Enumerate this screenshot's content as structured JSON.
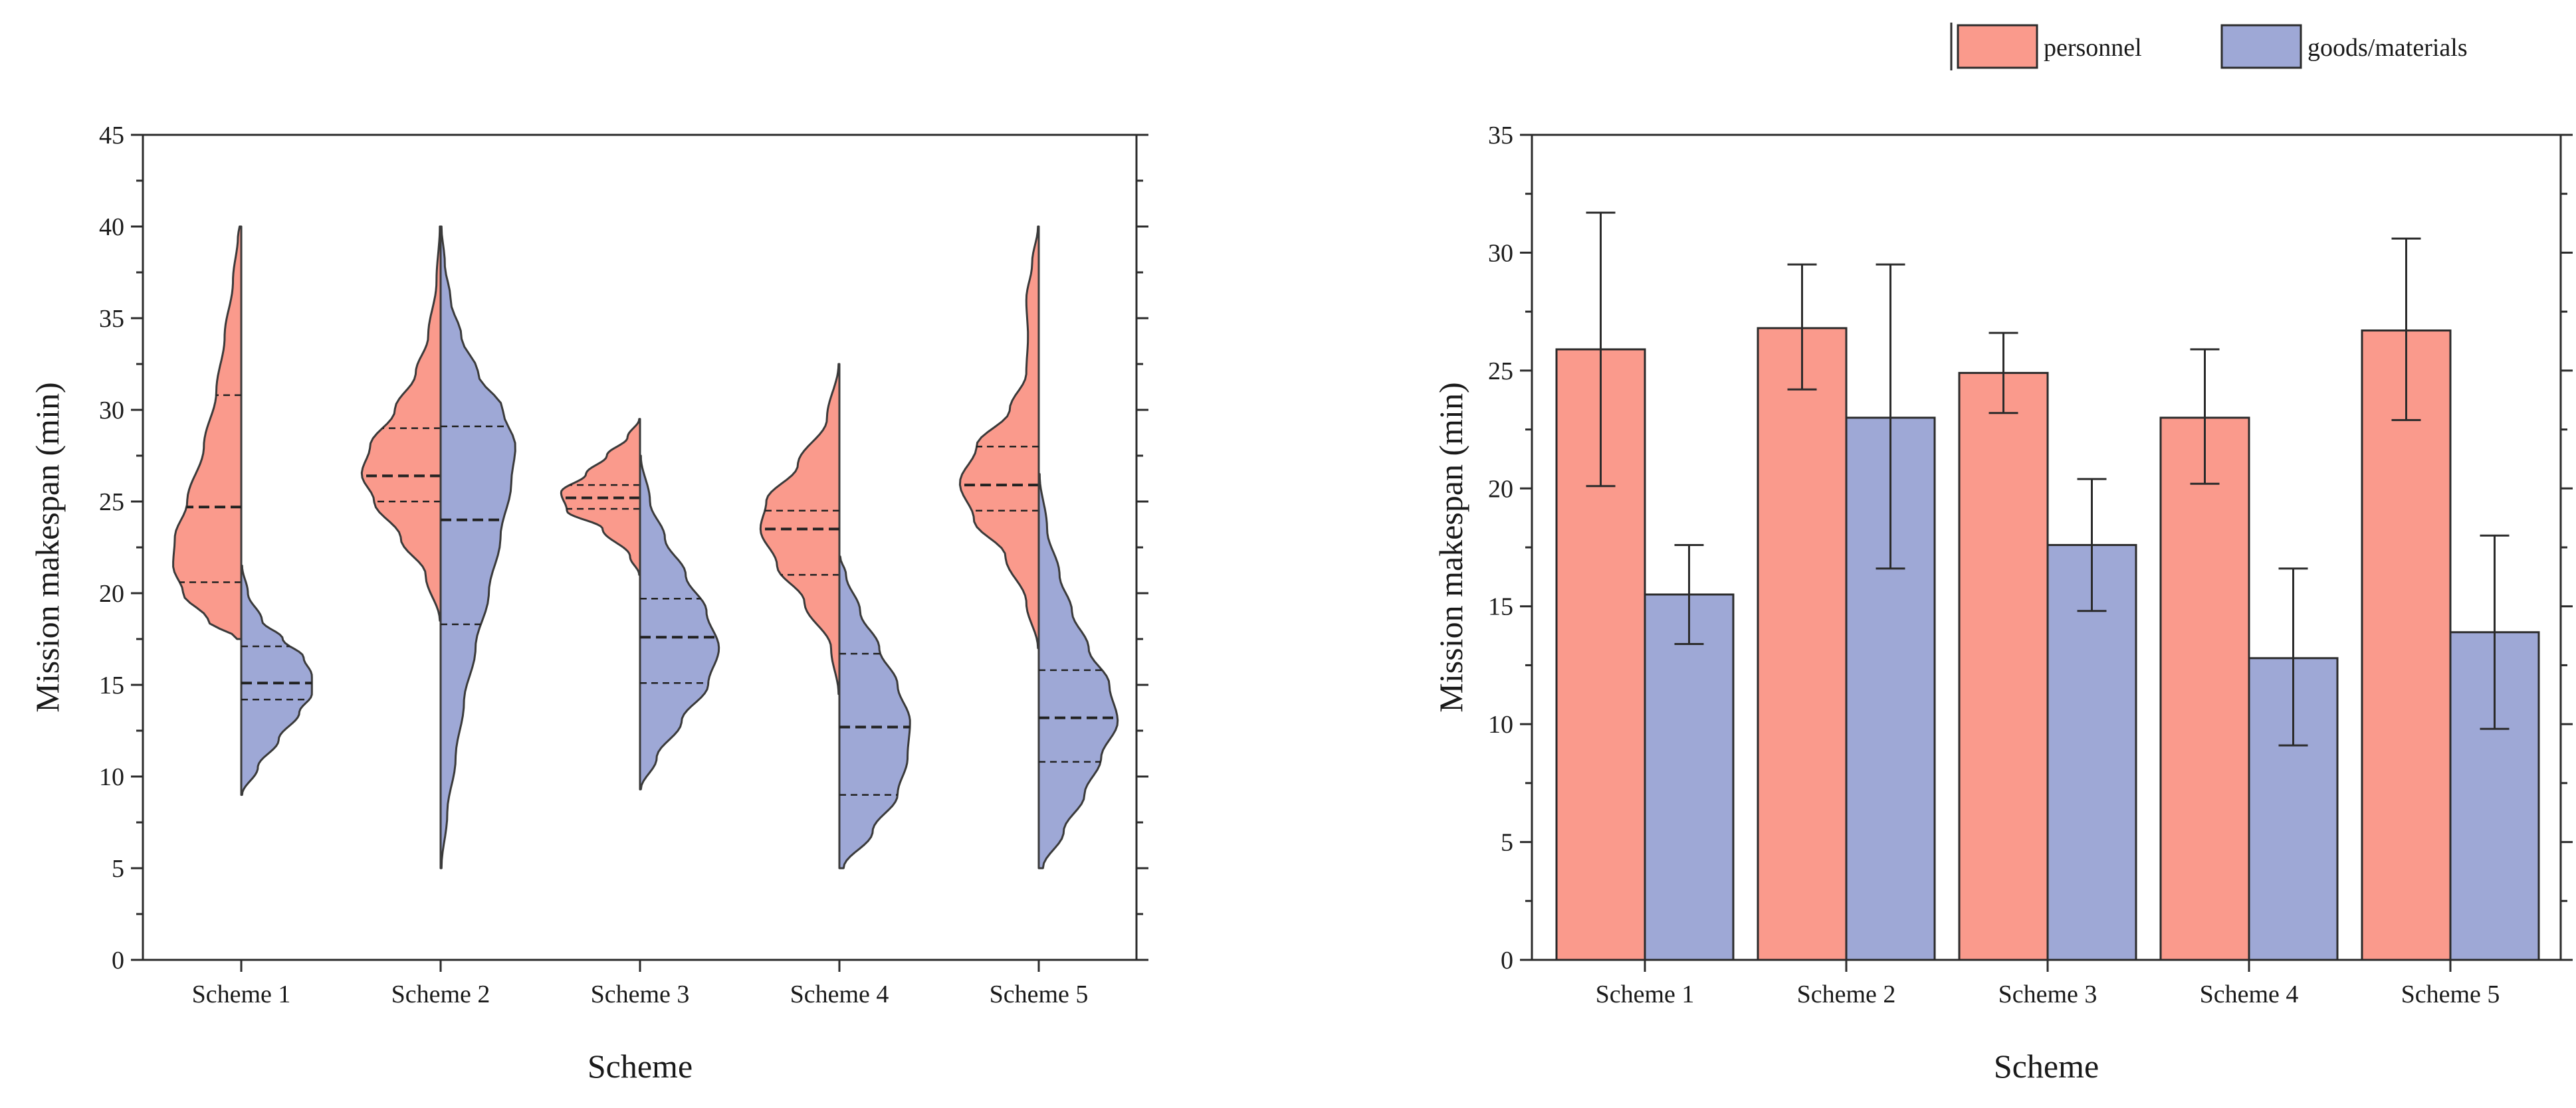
{
  "legend": {
    "entries": [
      {
        "label": "personnel",
        "color": "#fa9a8c"
      },
      {
        "label": "goods/materials",
        "color": "#9ea8d6"
      }
    ]
  },
  "chart_data": [
    {
      "type": "violin",
      "title": "",
      "xlabel": "Scheme",
      "ylabel": "Mission makespan (min)",
      "ylim": [
        0,
        45
      ],
      "yticks": [
        0,
        5,
        10,
        15,
        20,
        25,
        30,
        35,
        40,
        45
      ],
      "categories": [
        "Scheme 1",
        "Scheme 2",
        "Scheme 3",
        "Scheme 4",
        "Scheme 5"
      ],
      "series": [
        {
          "name": "personnel",
          "side": "left",
          "color": "#fa9a8c",
          "ranges": [
            [
              17.5,
              40
            ],
            [
              18.5,
              40
            ],
            [
              21,
              29.5
            ],
            [
              14.5,
              32.5
            ],
            [
              17,
              40
            ]
          ],
          "quartiles": [
            [
              20.6,
              24.7,
              30.8
            ],
            [
              25.0,
              26.4,
              29.0
            ],
            [
              24.6,
              25.2,
              25.9
            ],
            [
              21.0,
              23.5,
              24.5
            ],
            [
              24.5,
              25.9,
              28.0
            ]
          ],
          "profiles": [
            [
              [
                17.5,
                0.05
              ],
              [
                18.5,
                0.4
              ],
              [
                20,
                0.7
              ],
              [
                21.5,
                0.82
              ],
              [
                23,
                0.8
              ],
              [
                25,
                0.65
              ],
              [
                28,
                0.45
              ],
              [
                31,
                0.3
              ],
              [
                34,
                0.2
              ],
              [
                37,
                0.1
              ],
              [
                39.5,
                0.04
              ],
              [
                40,
                0.02
              ]
            ],
            [
              [
                18.5,
                0.01
              ],
              [
                21,
                0.18
              ],
              [
                23,
                0.48
              ],
              [
                25,
                0.8
              ],
              [
                26.5,
                0.95
              ],
              [
                28,
                0.85
              ],
              [
                30,
                0.55
              ],
              [
                32,
                0.3
              ],
              [
                34,
                0.15
              ],
              [
                37,
                0.05
              ],
              [
                40,
                0.01
              ]
            ],
            [
              [
                21,
                0.01
              ],
              [
                22,
                0.12
              ],
              [
                23.5,
                0.45
              ],
              [
                24.5,
                0.88
              ],
              [
                25.5,
                0.95
              ],
              [
                26.5,
                0.65
              ],
              [
                27.5,
                0.4
              ],
              [
                28.5,
                0.15
              ],
              [
                29.5,
                0.01
              ]
            ],
            [
              [
                14.5,
                0.01
              ],
              [
                17,
                0.1
              ],
              [
                19.5,
                0.42
              ],
              [
                21.5,
                0.75
              ],
              [
                23.5,
                0.95
              ],
              [
                25,
                0.88
              ],
              [
                27,
                0.5
              ],
              [
                29.5,
                0.15
              ],
              [
                32.5,
                0.01
              ]
            ],
            [
              [
                17,
                0.01
              ],
              [
                19.5,
                0.15
              ],
              [
                22,
                0.4
              ],
              [
                24,
                0.78
              ],
              [
                26,
                0.95
              ],
              [
                28,
                0.75
              ],
              [
                30,
                0.35
              ],
              [
                32,
                0.15
              ],
              [
                34,
                0.13
              ],
              [
                36,
                0.15
              ],
              [
                38,
                0.08
              ],
              [
                40,
                0.01
              ]
            ]
          ]
        },
        {
          "name": "goods/materials",
          "side": "right",
          "color": "#9ea8d6",
          "ranges": [
            [
              9,
              21.5
            ],
            [
              5,
              40
            ],
            [
              9.3,
              27.5
            ],
            [
              5,
              22
            ],
            [
              5,
              26.5
            ]
          ],
          "quartiles": [
            [
              14.2,
              15.1,
              17.1
            ],
            [
              18.3,
              24.0,
              29.1
            ],
            [
              15.1,
              17.6,
              19.7
            ],
            [
              9.0,
              12.7,
              16.7
            ],
            [
              10.8,
              13.2,
              15.8
            ]
          ],
          "profiles": [
            [
              [
                9,
                0.01
              ],
              [
                10.5,
                0.2
              ],
              [
                12,
                0.45
              ],
              [
                13.5,
                0.7
              ],
              [
                14.5,
                0.85
              ],
              [
                15.5,
                0.85
              ],
              [
                16.5,
                0.75
              ],
              [
                17.5,
                0.5
              ],
              [
                18.5,
                0.25
              ],
              [
                20,
                0.08
              ],
              [
                21.5,
                0.01
              ]
            ],
            [
              [
                5,
                0.01
              ],
              [
                8,
                0.08
              ],
              [
                11,
                0.18
              ],
              [
                14,
                0.28
              ],
              [
                17,
                0.42
              ],
              [
                20,
                0.58
              ],
              [
                23,
                0.72
              ],
              [
                26,
                0.85
              ],
              [
                28,
                0.9
              ],
              [
                30,
                0.75
              ],
              [
                32,
                0.45
              ],
              [
                34,
                0.25
              ],
              [
                36,
                0.12
              ],
              [
                38,
                0.05
              ],
              [
                40,
                0.01
              ]
            ],
            [
              [
                9.3,
                0.01
              ],
              [
                11,
                0.2
              ],
              [
                13,
                0.5
              ],
              [
                15,
                0.82
              ],
              [
                17,
                0.95
              ],
              [
                19,
                0.8
              ],
              [
                21,
                0.55
              ],
              [
                23,
                0.3
              ],
              [
                25,
                0.12
              ],
              [
                27.5,
                0.01
              ]
            ],
            [
              [
                5,
                0.05
              ],
              [
                7,
                0.4
              ],
              [
                9,
                0.7
              ],
              [
                11,
                0.82
              ],
              [
                13,
                0.85
              ],
              [
                15,
                0.7
              ],
              [
                17,
                0.48
              ],
              [
                19,
                0.25
              ],
              [
                21,
                0.08
              ],
              [
                22,
                0.01
              ]
            ],
            [
              [
                5,
                0.05
              ],
              [
                7,
                0.3
              ],
              [
                9,
                0.55
              ],
              [
                11,
                0.75
              ],
              [
                13,
                0.95
              ],
              [
                15,
                0.85
              ],
              [
                17,
                0.6
              ],
              [
                19,
                0.4
              ],
              [
                21,
                0.25
              ],
              [
                23.5,
                0.1
              ],
              [
                26.5,
                0.01
              ]
            ]
          ]
        }
      ]
    },
    {
      "type": "bar",
      "title": "",
      "xlabel": "Scheme",
      "ylabel": "Mission makespan (min)",
      "ylim": [
        0,
        35
      ],
      "yticks": [
        0,
        5,
        10,
        15,
        20,
        25,
        30,
        35
      ],
      "categories": [
        "Scheme 1",
        "Scheme 2",
        "Scheme 3",
        "Scheme 4",
        "Scheme 5"
      ],
      "series": [
        {
          "name": "personnel",
          "color": "#fa9a8c",
          "values": [
            25.9,
            26.8,
            24.9,
            23.0,
            26.7
          ],
          "err_low": [
            20.1,
            24.2,
            23.2,
            20.2,
            22.9
          ],
          "err_high": [
            31.7,
            29.5,
            26.6,
            25.9,
            30.6
          ]
        },
        {
          "name": "goods/materials",
          "color": "#9ea8d6",
          "values": [
            15.5,
            23.0,
            17.6,
            12.8,
            13.9
          ],
          "err_low": [
            13.4,
            16.6,
            14.8,
            9.1,
            9.8
          ],
          "err_high": [
            17.6,
            29.5,
            20.4,
            16.6,
            18.0
          ]
        }
      ]
    }
  ]
}
